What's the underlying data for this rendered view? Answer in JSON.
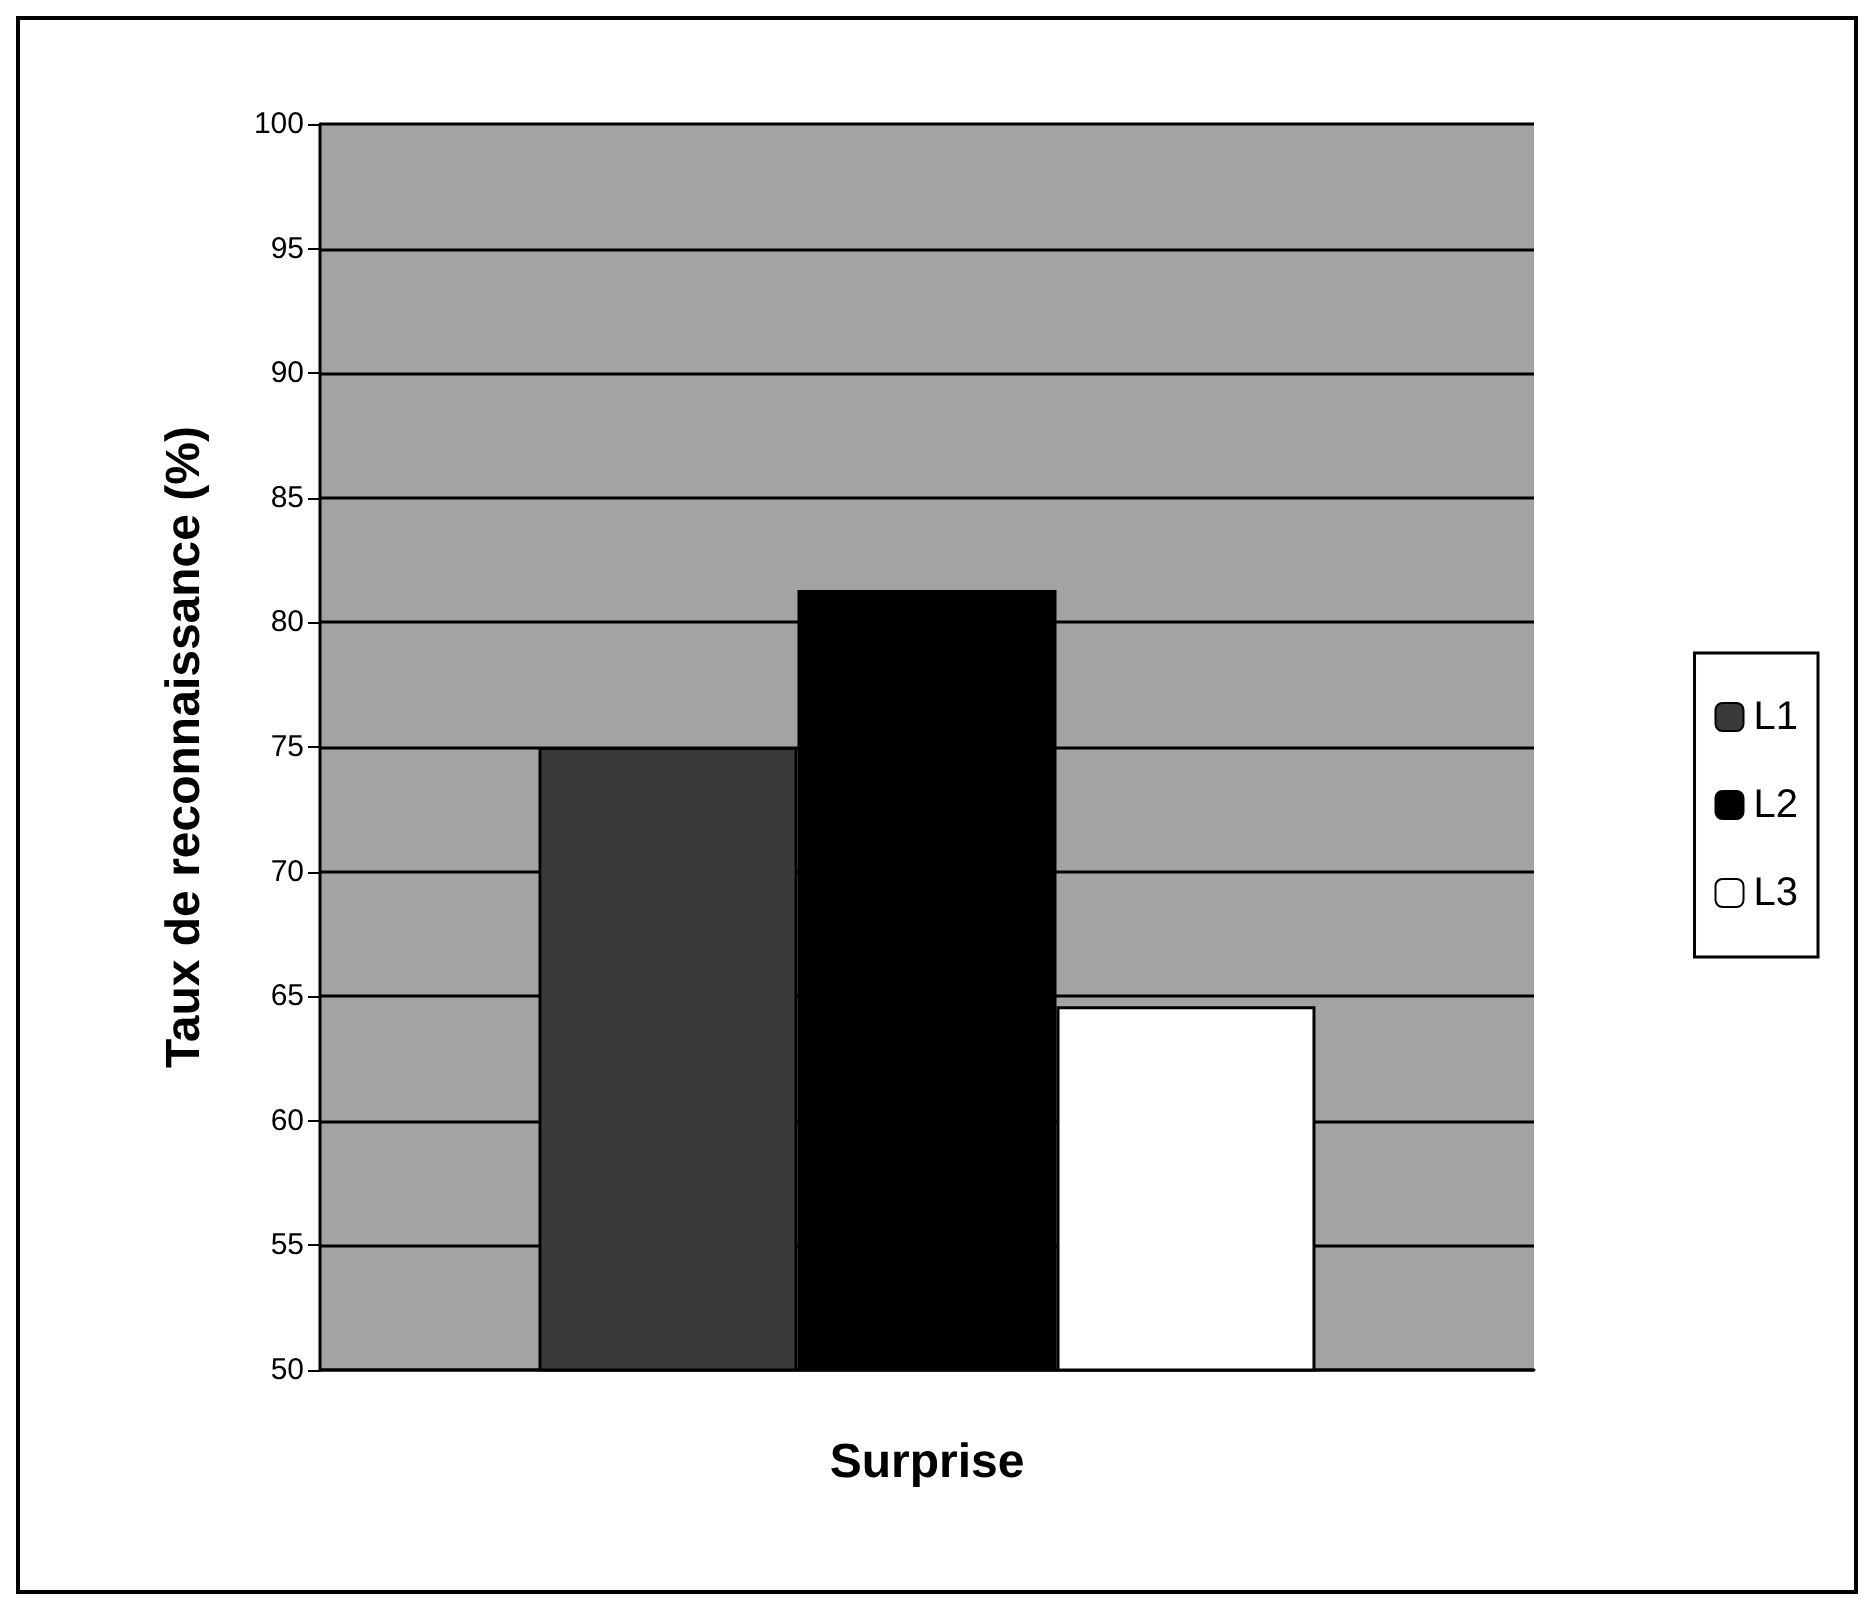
{
  "chart_data": {
    "type": "bar",
    "ylabel": "Taux de reconnaissance (%)",
    "categories": [
      "Surprise"
    ],
    "series": [
      {
        "name": "L1",
        "color": "#3a3a3a",
        "values": [
          75
        ]
      },
      {
        "name": "L2",
        "color": "#000000",
        "values": [
          81.3
        ]
      },
      {
        "name": "L3",
        "color": "#ffffff",
        "values": [
          64.6
        ]
      }
    ],
    "ylim": [
      50,
      100
    ],
    "yticks": [
      50,
      55,
      60,
      65,
      70,
      75,
      80,
      85,
      90,
      95,
      100
    ],
    "grid": "y",
    "legend": "right"
  }
}
